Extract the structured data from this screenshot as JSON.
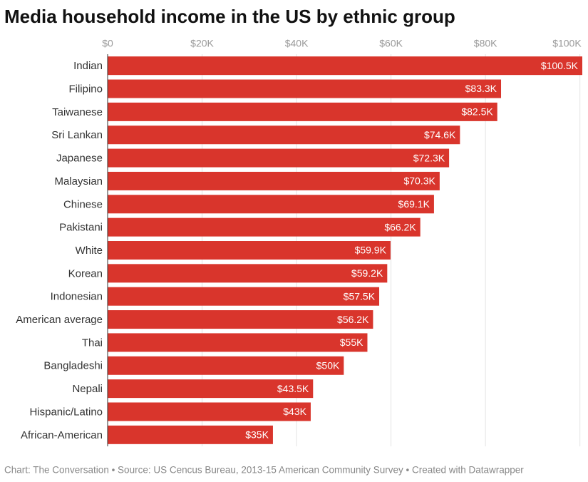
{
  "chart_data": {
    "type": "bar",
    "orientation": "horizontal",
    "title": "Media household income in the US by ethnic group",
    "categories": [
      "Indian",
      "Filipino",
      "Taiwanese",
      "Sri Lankan",
      "Japanese",
      "Malaysian",
      "Chinese",
      "Pakistani",
      "White",
      "Korean",
      "Indonesian",
      "American average",
      "Thai",
      "Bangladeshi",
      "Nepali",
      "Hispanic/Latino",
      "African-American"
    ],
    "values": [
      100500,
      83300,
      82500,
      74600,
      72300,
      70300,
      69100,
      66200,
      59900,
      59200,
      57500,
      56200,
      55000,
      50000,
      43500,
      43000,
      35000
    ],
    "value_labels": [
      "$100.5K",
      "$83.3K",
      "$82.5K",
      "$74.6K",
      "$72.3K",
      "$70.3K",
      "$69.1K",
      "$66.2K",
      "$59.9K",
      "$59.2K",
      "$57.5K",
      "$56.2K",
      "$55K",
      "$50K",
      "$43.5K",
      "$43K",
      "$35K"
    ],
    "color": "#d9352c",
    "xlim": [
      0,
      100500
    ],
    "xticks": [
      {
        "value": 0,
        "label": "$0"
      },
      {
        "value": 20000,
        "label": "$20K"
      },
      {
        "value": 40000,
        "label": "$40K"
      },
      {
        "value": 60000,
        "label": "$60K"
      },
      {
        "value": 80000,
        "label": "$80K"
      },
      {
        "value": 100000,
        "label": "$100K"
      }
    ],
    "grid": true,
    "footer": "Chart: The Conversation • Source: US Cencus Bureau, 2013-15 American Community Survey • Created with Datawrapper"
  }
}
